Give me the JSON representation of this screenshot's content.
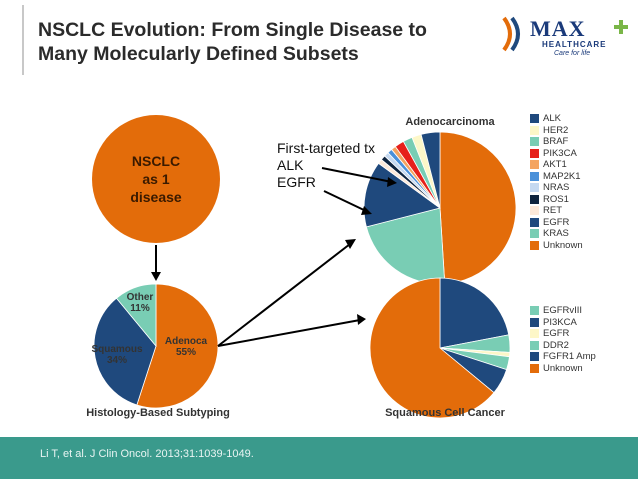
{
  "title": "NSCLC Evolution: From Single Disease to Many Molecularly Defined Subsets",
  "logo": {
    "word": "MAX",
    "sub": "HEALTHCARE",
    "tagline": "Care for life"
  },
  "nsclc_label": [
    "NSCLC",
    "as 1",
    "disease"
  ],
  "histology": {
    "caption": "Histology-Based Subtyping",
    "slices": [
      {
        "name": "Adenoca",
        "pct": "55%",
        "value": 55,
        "color": "#e36c0a"
      },
      {
        "name": "Squamous",
        "pct": "34%",
        "value": 34,
        "color": "#1f497d"
      },
      {
        "name": "Other",
        "pct": "11%",
        "value": 11,
        "color": "#79cdb4"
      }
    ]
  },
  "adeno": {
    "title": "Adenocarcinoma",
    "legend": [
      {
        "name": "ALK",
        "color": "#1f497d",
        "value": 4
      },
      {
        "name": "HER2",
        "color": "#fdf7c8",
        "value": 2
      },
      {
        "name": "BRAF",
        "color": "#79cdb4",
        "value": 2
      },
      {
        "name": "PIK3CA",
        "color": "#e6201a",
        "value": 2
      },
      {
        "name": "AKT1",
        "color": "#f4a460",
        "value": 1
      },
      {
        "name": "MAP2K1",
        "color": "#4a90d9",
        "value": 1
      },
      {
        "name": "NRAS",
        "color": "#c5d9f1",
        "value": 1
      },
      {
        "name": "ROS1",
        "color": "#0f243e",
        "value": 1
      },
      {
        "name": "RET",
        "color": "#fde9d9",
        "value": 1
      },
      {
        "name": "EGFR",
        "color": "#1f497d",
        "value": 14
      },
      {
        "name": "KRAS",
        "color": "#79cdb4",
        "value": 22
      },
      {
        "name": "Unknown",
        "color": "#e36c0a",
        "value": 49
      }
    ]
  },
  "squamous": {
    "title": "Squamous Cell Cancer",
    "legend": [
      {
        "name": "EGFRvIII",
        "color": "#79cdb4",
        "value": 3
      },
      {
        "name": "PI3KCA",
        "color": "#1f497d",
        "value": 6
      },
      {
        "name": "EGFR",
        "color": "#fdf7c8",
        "value": 1
      },
      {
        "name": "DDR2",
        "color": "#79cdb4",
        "value": 4
      },
      {
        "name": "FGFR1 Amp",
        "color": "#1f497d",
        "value": 22
      },
      {
        "name": "Unknown",
        "color": "#e36c0a",
        "value": 64
      }
    ]
  },
  "annotation": [
    "First-targeted tx",
    "ALK",
    "EGFR"
  ],
  "footer": "Li T, et al. J Clin Oncol. 2013;31:1039-1049."
}
